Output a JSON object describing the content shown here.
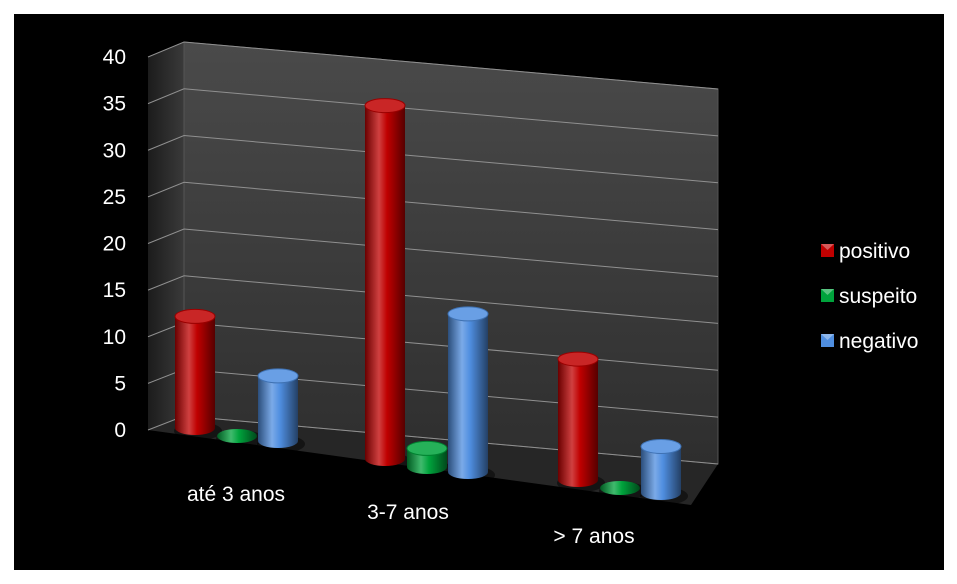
{
  "chart_data": {
    "type": "bar",
    "variant": "3d-cylinder",
    "categories": [
      "até 3 anos",
      "3-7 anos",
      "> 7 anos"
    ],
    "series": [
      {
        "name": "positivo",
        "values": [
          12,
          38,
          13
        ]
      },
      {
        "name": "suspeito",
        "values": [
          0,
          2,
          0
        ]
      },
      {
        "name": "negativo",
        "values": [
          7,
          17,
          5
        ]
      }
    ],
    "ylim": [
      0,
      40
    ],
    "yticks": [
      "0",
      "5",
      "10",
      "15",
      "20",
      "25",
      "30",
      "35",
      "40"
    ],
    "grid": true,
    "legend_position": "right",
    "colors": {
      "positivo": "#c00000",
      "suspeito": "#00a33c",
      "negativo": "#4f8ee0",
      "background": "#000000",
      "wall": "#3a3a3a",
      "floor": "#2b2b2b",
      "gridline": "#909090",
      "text": "#ffffff"
    }
  }
}
